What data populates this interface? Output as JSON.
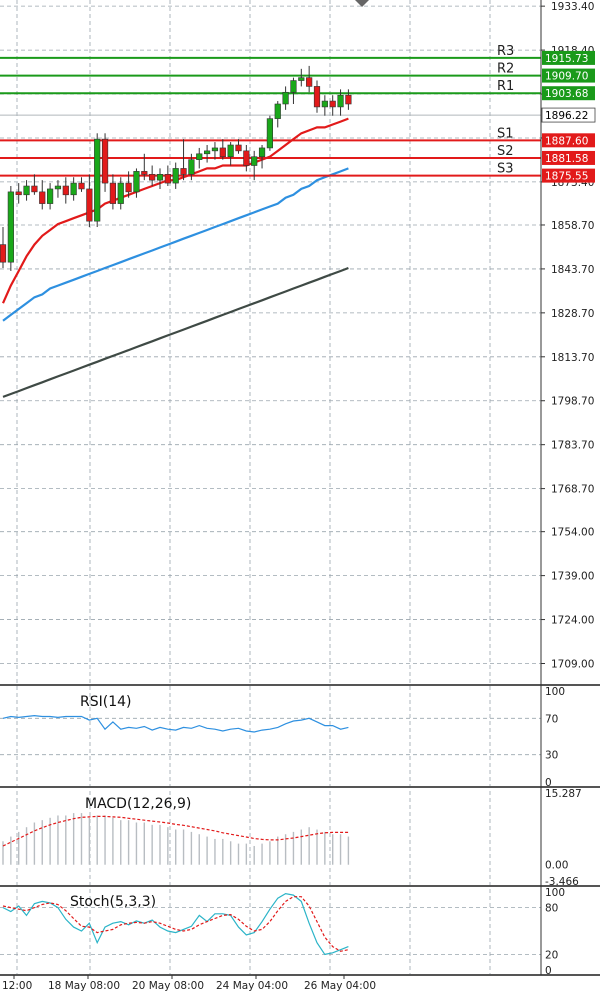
{
  "chart_data": {
    "type": "candlestick",
    "symbol": "Gold",
    "price_axis": {
      "ticks": [
        "1933.40",
        "1918.40",
        "1903.40",
        "1888.40",
        "1873.40",
        "1858.70",
        "1843.70",
        "1828.70",
        "1813.70",
        "1798.70",
        "1783.70",
        "1768.70",
        "1754.00",
        "1739.00",
        "1724.00",
        "1709.00"
      ],
      "range": [
        1702.0,
        1935.5
      ],
      "grid": true
    },
    "time_axis": {
      "ticks": [
        "12:00",
        "18 May 08:00",
        "20 May 08:00",
        "24 May 04:00",
        "26 May 04:00"
      ]
    },
    "levels": [
      {
        "label": "R3",
        "value": 1915.73,
        "value_text": "1915.73",
        "color": "#1a9a1a"
      },
      {
        "label": "R2",
        "value": 1909.7,
        "value_text": "1909.70",
        "color": "#1a9a1a"
      },
      {
        "label": "R1",
        "value": 1903.68,
        "value_text": "1903.68",
        "color": "#1a9a1a"
      },
      {
        "label": "S1",
        "value": 1887.6,
        "value_text": "1887.60",
        "color": "#e21a1a"
      },
      {
        "label": "S2",
        "value": 1881.58,
        "value_text": "1881.58",
        "color": "#e21a1a"
      },
      {
        "label": "S3",
        "value": 1875.55,
        "value_text": "1875.55",
        "color": "#e21a1a"
      }
    ],
    "current_price": {
      "value": 1896.22,
      "value_text": "1896.22"
    },
    "candles": [
      [
        1852,
        1858,
        1844,
        1846
      ],
      [
        1846,
        1872,
        1843,
        1870
      ],
      [
        1870,
        1873,
        1866,
        1869
      ],
      [
        1869,
        1874,
        1867,
        1872
      ],
      [
        1872,
        1876,
        1869,
        1870
      ],
      [
        1870,
        1874,
        1864,
        1866
      ],
      [
        1866,
        1873,
        1864,
        1871
      ],
      [
        1871,
        1874,
        1868,
        1872
      ],
      [
        1872,
        1875,
        1866,
        1869
      ],
      [
        1869,
        1875,
        1867,
        1873
      ],
      [
        1873,
        1875,
        1870,
        1871
      ],
      [
        1871,
        1876,
        1858,
        1860
      ],
      [
        1860,
        1890,
        1858,
        1888
      ],
      [
        1888,
        1890,
        1870,
        1873
      ],
      [
        1873,
        1876,
        1864,
        1866
      ],
      [
        1866,
        1875,
        1864,
        1873
      ],
      [
        1873,
        1877,
        1868,
        1870
      ],
      [
        1870,
        1878,
        1868,
        1877
      ],
      [
        1877,
        1883,
        1874,
        1876
      ],
      [
        1876,
        1879,
        1872,
        1874
      ],
      [
        1874,
        1878,
        1871,
        1876
      ],
      [
        1876,
        1879,
        1872,
        1873
      ],
      [
        1873,
        1880,
        1871,
        1878
      ],
      [
        1878,
        1888,
        1874,
        1876
      ],
      [
        1876,
        1883,
        1874,
        1881
      ],
      [
        1881,
        1885,
        1878,
        1883
      ],
      [
        1883,
        1886,
        1880,
        1884
      ],
      [
        1884,
        1887,
        1881,
        1885
      ],
      [
        1885,
        1888,
        1881,
        1882
      ],
      [
        1882,
        1887,
        1879,
        1886
      ],
      [
        1886,
        1888,
        1883,
        1884
      ],
      [
        1884,
        1886,
        1877,
        1879
      ],
      [
        1879,
        1884,
        1874,
        1882
      ],
      [
        1882,
        1886,
        1878,
        1885
      ],
      [
        1885,
        1896,
        1884,
        1895
      ],
      [
        1895,
        1901,
        1892,
        1900
      ],
      [
        1900,
        1906,
        1898,
        1904
      ],
      [
        1904,
        1909,
        1900,
        1908
      ],
      [
        1908,
        1912,
        1906,
        1909
      ],
      [
        1909,
        1913,
        1904,
        1906
      ],
      [
        1906,
        1908,
        1897,
        1899
      ],
      [
        1899,
        1903,
        1896,
        1901
      ],
      [
        1901,
        1903,
        1896,
        1899
      ],
      [
        1899,
        1905,
        1896,
        1903
      ],
      [
        1903,
        1905,
        1898,
        1900
      ]
    ],
    "moving_averages": [
      {
        "color": "#e21a1a",
        "values": [
          1832,
          1838,
          1843,
          1848,
          1852,
          1855,
          1857,
          1859,
          1860,
          1861,
          1862,
          1863,
          1864,
          1866,
          1867,
          1868,
          1869,
          1870,
          1871,
          1872,
          1873,
          1874,
          1874,
          1875,
          1876,
          1877,
          1878,
          1878,
          1879,
          1879,
          1879,
          1879,
          1880,
          1881,
          1882,
          1884,
          1886,
          1888,
          1890,
          1891,
          1892,
          1892,
          1893,
          1894,
          1895
        ]
      },
      {
        "color": "#2e90e0",
        "values": [
          1826,
          1828,
          1830,
          1832,
          1834,
          1835,
          1837,
          1838,
          1839,
          1840,
          1841,
          1842,
          1843,
          1844,
          1845,
          1846,
          1847,
          1848,
          1849,
          1850,
          1851,
          1852,
          1853,
          1854,
          1855,
          1856,
          1857,
          1858,
          1859,
          1860,
          1861,
          1862,
          1863,
          1864,
          1865,
          1866,
          1868,
          1869,
          1871,
          1872,
          1874,
          1875,
          1876,
          1877,
          1878
        ]
      },
      {
        "color": "#3f4a45",
        "values": [
          1800,
          1801,
          1802,
          1803,
          1804,
          1805,
          1806,
          1807,
          1808,
          1809,
          1810,
          1811,
          1812,
          1813,
          1814,
          1815,
          1816,
          1817,
          1818,
          1819,
          1820,
          1821,
          1822,
          1823,
          1824,
          1825,
          1826,
          1827,
          1828,
          1829,
          1830,
          1831,
          1832,
          1833,
          1834,
          1835,
          1836,
          1837,
          1838,
          1839,
          1840,
          1841,
          1842,
          1843,
          1844
        ]
      }
    ],
    "rsi": {
      "title": "RSI(14)",
      "ticks": [
        "100",
        "70",
        "30",
        "0"
      ],
      "range": [
        0,
        100
      ],
      "values": [
        70,
        72,
        71,
        72,
        73,
        72,
        72,
        71,
        72,
        72,
        72,
        68,
        70,
        58,
        66,
        58,
        60,
        59,
        61,
        57,
        60,
        58,
        57,
        60,
        59,
        62,
        59,
        58,
        56,
        58,
        59,
        56,
        55,
        57,
        58,
        60,
        64,
        67,
        68,
        70,
        66,
        62,
        62,
        58,
        60
      ]
    },
    "macd": {
      "title": "MACD(12,26,9)",
      "ticks": [
        "15.287",
        "0.00",
        "-3.466"
      ],
      "range": [
        -3.466,
        15.287
      ],
      "histogram": [
        5,
        6,
        7,
        8,
        9,
        9.5,
        10,
        10.5,
        10.5,
        11,
        11,
        10,
        10.5,
        10.5,
        10,
        9.5,
        9.5,
        9,
        9,
        8.5,
        8.5,
        8,
        7.5,
        7.5,
        7,
        6.5,
        6,
        5.5,
        5.5,
        5,
        4.5,
        4.5,
        4,
        4.5,
        5,
        6,
        6.5,
        7,
        7.5,
        8,
        7.5,
        7,
        6.5,
        6.5,
        6
      ],
      "signal": [
        4,
        4.8,
        5.6,
        6.4,
        7.2,
        7.9,
        8.5,
        9,
        9.4,
        9.8,
        10.1,
        10.2,
        10.3,
        10.3,
        10.2,
        10.1,
        9.9,
        9.7,
        9.5,
        9.3,
        9.1,
        8.9,
        8.6,
        8.4,
        8.1,
        7.8,
        7.5,
        7.2,
        6.8,
        6.5,
        6.2,
        5.9,
        5.6,
        5.4,
        5.3,
        5.3,
        5.5,
        5.7,
        6,
        6.3,
        6.6,
        6.8,
        6.9,
        6.9,
        6.9
      ]
    },
    "stoch": {
      "title": "Stoch(5,3,3)",
      "ticks": [
        "100",
        "80",
        "20",
        "0"
      ],
      "range": [
        0,
        100
      ],
      "k": [
        80,
        75,
        82,
        70,
        85,
        88,
        86,
        80,
        65,
        55,
        50,
        60,
        35,
        55,
        60,
        62,
        58,
        63,
        60,
        64,
        55,
        50,
        48,
        52,
        56,
        70,
        62,
        72,
        72,
        70,
        55,
        45,
        48,
        62,
        78,
        92,
        98,
        96,
        88,
        60,
        35,
        20,
        22,
        26,
        30
      ],
      "d": [
        82,
        80,
        78,
        76,
        80,
        84,
        86,
        84,
        76,
        66,
        56,
        55,
        48,
        50,
        52,
        58,
        60,
        61,
        60,
        62,
        60,
        56,
        52,
        50,
        52,
        58,
        62,
        66,
        70,
        71,
        65,
        56,
        50,
        52,
        62,
        76,
        88,
        94,
        94,
        82,
        62,
        42,
        30,
        24,
        26
      ]
    }
  }
}
